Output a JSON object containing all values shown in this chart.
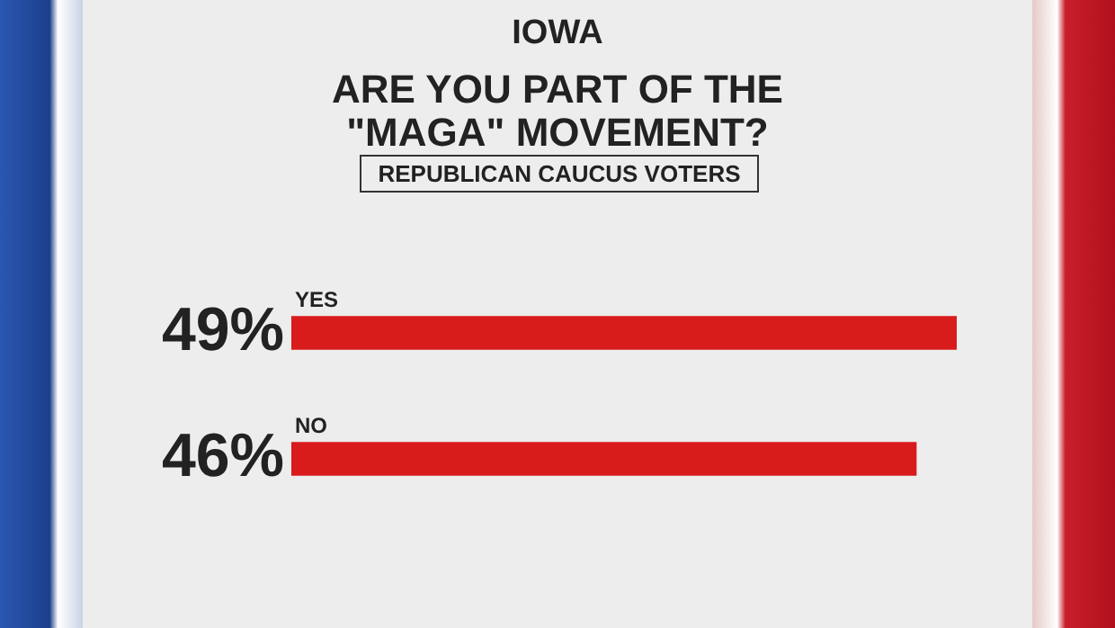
{
  "chart_data": {
    "type": "bar",
    "orientation": "horizontal",
    "title": "IOWA",
    "subtitle": "ARE YOU PART OF THE \"MAGA\" MOVEMENT?",
    "annotations": [
      "REPUBLICAN CAUCUS VOTERS"
    ],
    "categories": [
      "YES",
      "NO"
    ],
    "values": [
      49,
      46
    ],
    "color": "#d81b1b",
    "value_labels": [
      "49%",
      "46%"
    ],
    "xlim": [
      0,
      49
    ],
    "tick_labels": false,
    "legend": false
  }
}
